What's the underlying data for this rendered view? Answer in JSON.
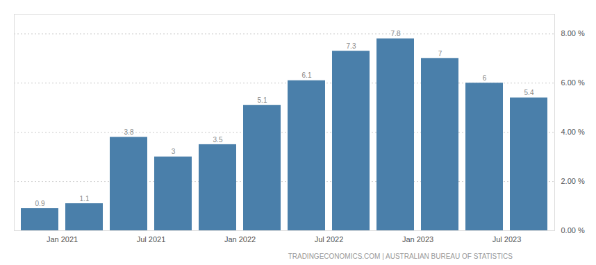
{
  "chart_data": {
    "type": "bar",
    "categories": [
      "Jan 2021",
      null,
      "Jul 2021",
      null,
      "Jan 2022",
      null,
      "Jul 2022",
      null,
      "Jan 2023",
      null,
      "Jul 2023",
      null
    ],
    "values": [
      0.9,
      1.1,
      3.8,
      3.0,
      3.5,
      5.1,
      6.1,
      7.3,
      7.8,
      7.0,
      6.0,
      5.4
    ],
    "value_labels": [
      "0.9",
      "1.1",
      "3.8",
      "3",
      "3.5",
      "5.1",
      "6.1",
      "7.3",
      "7.8",
      "7",
      "6",
      "5.4"
    ],
    "data_labels": true,
    "color": "#4a7faa",
    "ylim": [
      0,
      8.8
    ],
    "yticks": [
      {
        "value": 0.0,
        "label": "0.00 %"
      },
      {
        "value": 2.0,
        "label": "2.00 %"
      },
      {
        "value": 4.0,
        "label": "4.00 %"
      },
      {
        "value": 6.0,
        "label": "6.00 %"
      },
      {
        "value": 8.0,
        "label": "8.00 %"
      }
    ],
    "grid": true,
    "annotations": [
      "TRADINGECONOMICS.COM  |  AUSTRALIAN BUREAU OF STATISTICS"
    ]
  }
}
